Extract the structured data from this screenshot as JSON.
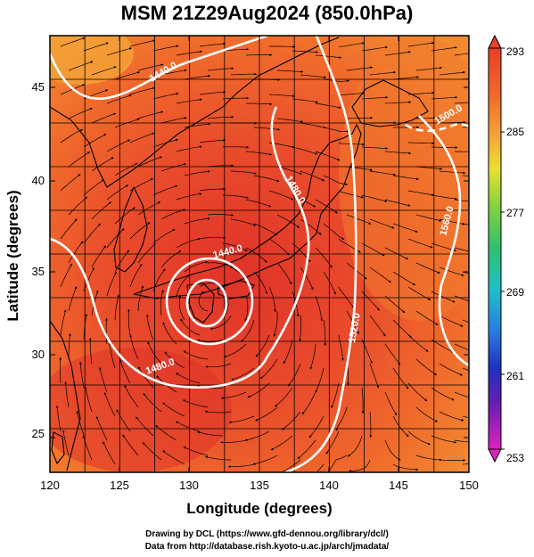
{
  "title": "MSM 21Z29Aug2024 (850.0hPa)",
  "axes": {
    "xlabel": "Longitude (degrees)",
    "ylabel": "Latitude  (degrees)",
    "x_ticks": [
      "120",
      "125",
      "130",
      "135",
      "140",
      "145",
      "150"
    ],
    "y_ticks": [
      "25",
      "30",
      "35",
      "40",
      "45"
    ]
  },
  "colorbar": {
    "labels": [
      "293",
      "285",
      "277",
      "269",
      "261",
      "253"
    ]
  },
  "contour_labels": [
    "1440.0",
    "1440.0",
    "1480.0",
    "1480.0",
    "1500.0",
    "1520.0",
    "1560.0"
  ],
  "footer": {
    "line1": "Drawing by DCL (https://www.gfd-dennou.org/library/dcl/)",
    "line2": "Data from http://database.rish.kyoto-u.ac.jp/arch/jmadata/"
  },
  "colors": {
    "field_warm": "#e8402a",
    "field_mid": "#f06a2c",
    "field_light": "#f4a43a",
    "contour": "#ffffff",
    "streamline": "#000000"
  }
}
